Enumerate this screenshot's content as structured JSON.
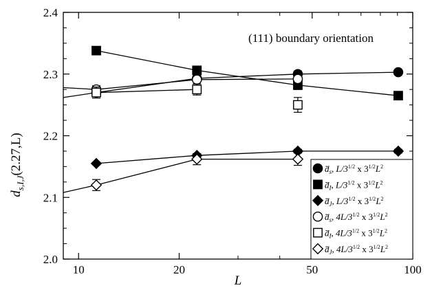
{
  "chart_data": {
    "type": "scatter",
    "xscale": "log",
    "xlim": [
      9,
      100
    ],
    "ylim": [
      2.0,
      2.4
    ],
    "xticks": [
      10,
      20,
      50,
      100
    ],
    "xtick_labels": [
      "10",
      "20",
      "50",
      "100"
    ],
    "yticks": [
      2.0,
      2.1,
      2.2,
      2.3,
      2.4
    ],
    "ytick_labels": [
      "2.0",
      "2.1",
      "2.2",
      "2.3",
      "2.4"
    ],
    "xlabel": "L",
    "ylabel_parts": {
      "symbol": "d",
      "sub": "s,I,J",
      "rest": "(2.27,L)"
    },
    "annotation": "(111) boundary orientation",
    "grid": false,
    "legend_position": "lower-right",
    "series": [
      {
        "key": "s1",
        "marker": "circle",
        "filled": true,
        "sub": "s",
        "size_text": "L/3",
        "mid": " x 3",
        "tail": "L",
        "x": [
          11.3,
          22.6,
          45.3,
          90.5
        ],
        "y": [
          2.27,
          2.293,
          2.3,
          2.303
        ],
        "err": [
          0.004,
          0.004,
          0.005,
          0.004
        ],
        "line": {
          "x": [
            9,
            11.3,
            22.6,
            45.3,
            90.5
          ],
          "y": [
            2.262,
            2.27,
            2.293,
            2.3,
            2.303
          ]
        }
      },
      {
        "key": "s2",
        "marker": "square",
        "filled": true,
        "sub": "I",
        "size_text": "L/3",
        "mid": " x 3",
        "tail": "L",
        "x": [
          11.3,
          22.6,
          45.3,
          90.5
        ],
        "y": [
          2.338,
          2.306,
          2.282,
          2.265
        ],
        "err": [
          0.003,
          0.006,
          0.007,
          0.005
        ],
        "line": {
          "x": [
            11.3,
            22.6,
            45.3,
            90.5
          ],
          "y": [
            2.338,
            2.306,
            2.282,
            2.265
          ]
        }
      },
      {
        "key": "s3",
        "marker": "diamond",
        "filled": true,
        "sub": "J",
        "size_text": "L/3",
        "mid": " x 3",
        "tail": "L",
        "x": [
          11.3,
          22.6,
          45.3,
          90.5
        ],
        "y": [
          2.155,
          2.168,
          2.175,
          2.175
        ],
        "err": [
          0.002,
          0.003,
          0.003,
          0.003
        ],
        "line": {
          "x": [
            11.3,
            22.6,
            45.3,
            90.5
          ],
          "y": [
            2.155,
            2.168,
            2.175,
            2.175
          ]
        }
      },
      {
        "key": "s4",
        "marker": "circle",
        "filled": false,
        "sub": "s",
        "size_text": "4L/3",
        "mid": " x 3",
        "tail": "L",
        "x": [
          11.3,
          22.6,
          45.3
        ],
        "y": [
          2.275,
          2.291,
          2.292
        ],
        "err": [
          0.006,
          0.007,
          0.01
        ],
        "line": {
          "x": [
            9,
            11.3,
            22.6,
            45.3
          ],
          "y": [
            2.278,
            2.275,
            2.291,
            2.292
          ]
        }
      },
      {
        "key": "s5",
        "marker": "square",
        "filled": false,
        "sub": "I",
        "size_text": "4L/3",
        "mid": " x 3",
        "tail": "L",
        "x": [
          11.3,
          22.6,
          45.3
        ],
        "y": [
          2.27,
          2.275,
          2.25
        ],
        "err": [
          0.009,
          0.009,
          0.012
        ],
        "line": {
          "x": [
            11.3,
            22.6
          ],
          "y": [
            2.27,
            2.275
          ]
        }
      },
      {
        "key": "s6",
        "marker": "diamond",
        "filled": false,
        "sub": "J",
        "size_text": "4L/3",
        "mid": " x 3",
        "tail": "L",
        "x": [
          11.3,
          22.6,
          45.3
        ],
        "y": [
          2.12,
          2.162,
          2.162
        ],
        "err": [
          0.009,
          0.009,
          0.01
        ],
        "line": {
          "x": [
            9,
            11.3,
            22.6,
            45.3
          ],
          "y": [
            2.108,
            2.12,
            2.162,
            2.162
          ]
        }
      }
    ]
  }
}
